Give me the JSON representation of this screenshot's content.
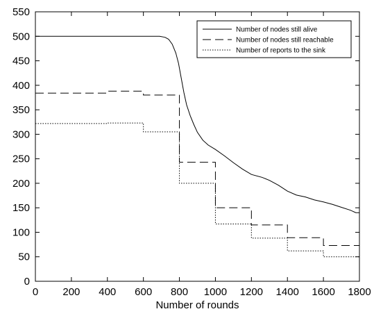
{
  "chart_data": {
    "type": "line",
    "title": "",
    "xlabel": "Number of rounds",
    "ylabel": "",
    "xlim": [
      0,
      1800
    ],
    "ylim": [
      0,
      550
    ],
    "xticks": [
      0,
      200,
      400,
      600,
      800,
      1000,
      1200,
      1400,
      1600,
      1800
    ],
    "yticks": [
      0,
      50,
      100,
      150,
      200,
      250,
      300,
      350,
      400,
      450,
      500,
      550
    ],
    "xtick_labels": [
      "0",
      "200",
      "400",
      "600",
      "800",
      "1000",
      "1200",
      "1400",
      "1600",
      "1800"
    ],
    "ytick_labels": [
      "0",
      "50",
      "100",
      "150",
      "200",
      "250",
      "300",
      "350",
      "400",
      "450",
      "500",
      "550"
    ],
    "grid": false,
    "legend_position": "top-right",
    "series": [
      {
        "name": "Number of nodes still alive",
        "style": "solid",
        "points": [
          [
            0,
            500
          ],
          [
            690,
            500
          ],
          [
            720,
            498
          ],
          [
            740,
            494
          ],
          [
            760,
            484
          ],
          [
            780,
            466
          ],
          [
            795,
            445
          ],
          [
            810,
            415
          ],
          [
            825,
            385
          ],
          [
            840,
            360
          ],
          [
            860,
            338
          ],
          [
            880,
            320
          ],
          [
            900,
            304
          ],
          [
            930,
            288
          ],
          [
            960,
            278
          ],
          [
            1000,
            269
          ],
          [
            1050,
            256
          ],
          [
            1100,
            242
          ],
          [
            1150,
            229
          ],
          [
            1200,
            218
          ],
          [
            1260,
            212
          ],
          [
            1300,
            206
          ],
          [
            1350,
            196
          ],
          [
            1400,
            184
          ],
          [
            1450,
            176
          ],
          [
            1500,
            172
          ],
          [
            1550,
            166
          ],
          [
            1600,
            162
          ],
          [
            1650,
            157
          ],
          [
            1700,
            151
          ],
          [
            1750,
            145
          ],
          [
            1780,
            140
          ],
          [
            1800,
            140
          ]
        ]
      },
      {
        "name": "Number of nodes still reachable",
        "style": "dashed",
        "steps": [
          [
            0,
            384
          ],
          [
            400,
            388
          ],
          [
            600,
            380
          ],
          [
            800,
            243
          ],
          [
            1000,
            150
          ],
          [
            1200,
            115
          ],
          [
            1400,
            89
          ],
          [
            1600,
            73
          ],
          [
            1800,
            73
          ]
        ]
      },
      {
        "name": "Number of reports to the sink",
        "style": "dotted",
        "steps": [
          [
            0,
            322
          ],
          [
            400,
            323
          ],
          [
            600,
            305
          ],
          [
            800,
            200
          ],
          [
            1000,
            117
          ],
          [
            1200,
            88
          ],
          [
            1400,
            62
          ],
          [
            1600,
            50
          ],
          [
            1800,
            50
          ]
        ]
      }
    ]
  }
}
